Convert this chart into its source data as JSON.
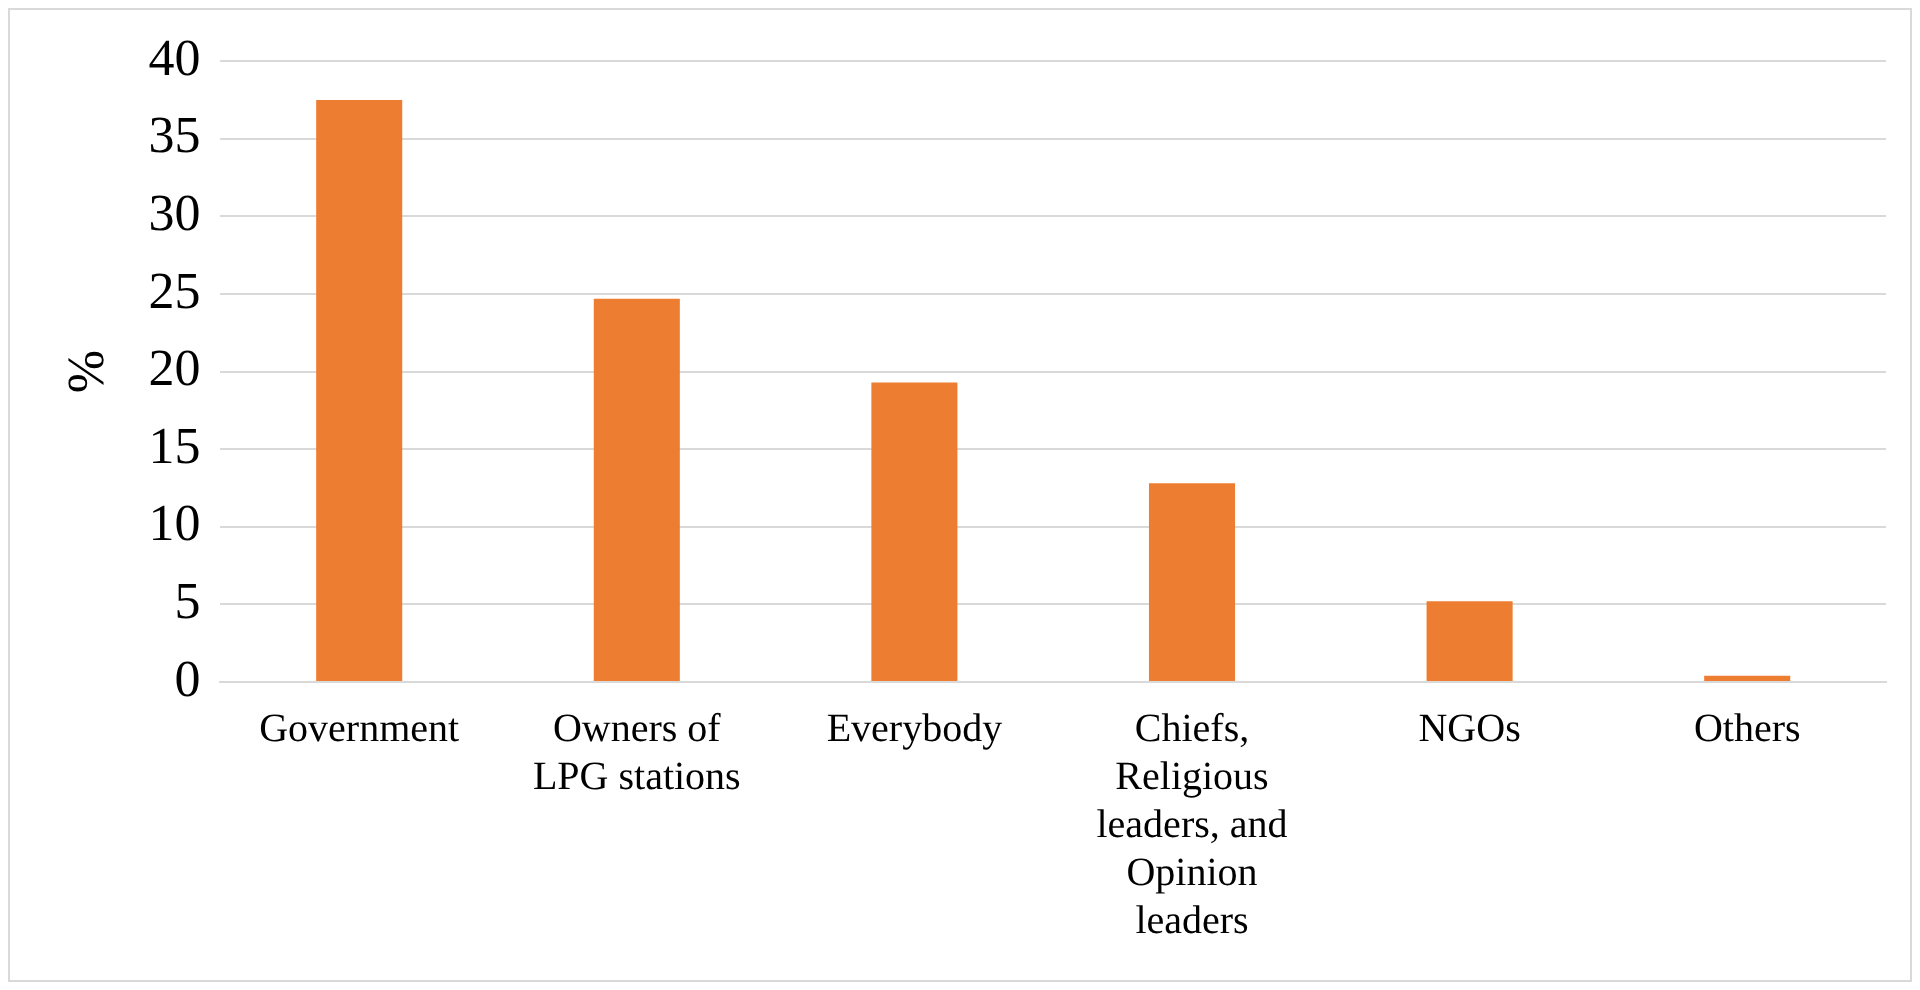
{
  "chart_data": {
    "type": "bar",
    "ylabel": "%",
    "categories": [
      "Government",
      "Owners of LPG stations",
      "Everybody",
      "Chiefs, Religious leaders, and Opinion leaders",
      "NGOs",
      "Others"
    ],
    "values": [
      37.5,
      24.7,
      19.3,
      12.8,
      5.2,
      0.4
    ],
    "color": "#ed7d31",
    "ylim": [
      0,
      40
    ],
    "yticks": [
      0,
      5,
      10,
      15,
      20,
      25,
      30,
      35,
      40
    ],
    "grid": "y",
    "legend": false
  }
}
